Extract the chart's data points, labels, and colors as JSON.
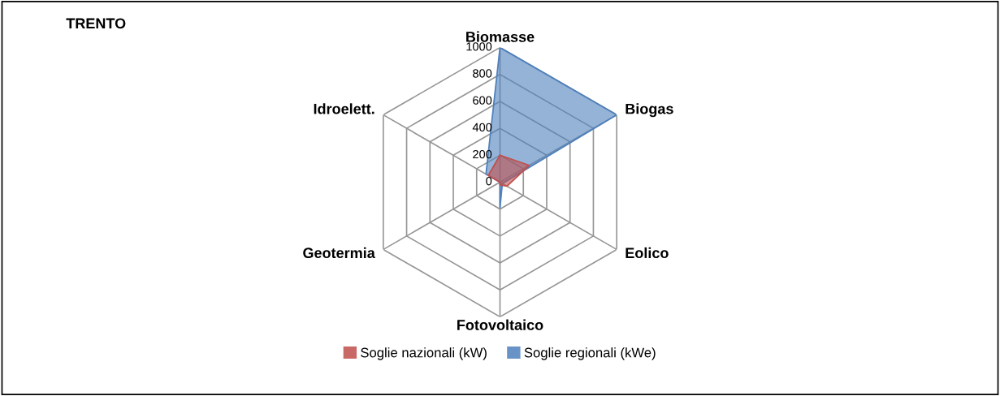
{
  "chart_data": {
    "type": "radar",
    "title": "TRENTO",
    "categories": [
      "Biomasse",
      "Biogas",
      "Eolico",
      "Fotovoltaico",
      "Geotermia",
      "Idroelett."
    ],
    "series": [
      {
        "name": "Soglie nazionali (kW)",
        "color": "#c0504d",
        "values": [
          200,
          250,
          60,
          20,
          0,
          100
        ]
      },
      {
        "name": "Soglie regionali (kWe)",
        "color": "#4f81bd",
        "values": [
          1000,
          1000,
          20,
          190,
          0,
          120
        ]
      }
    ],
    "ylim": [
      0,
      1000
    ],
    "yticks": [
      0,
      200,
      400,
      600,
      800,
      1000
    ],
    "grid": true,
    "legend": "bottom"
  }
}
